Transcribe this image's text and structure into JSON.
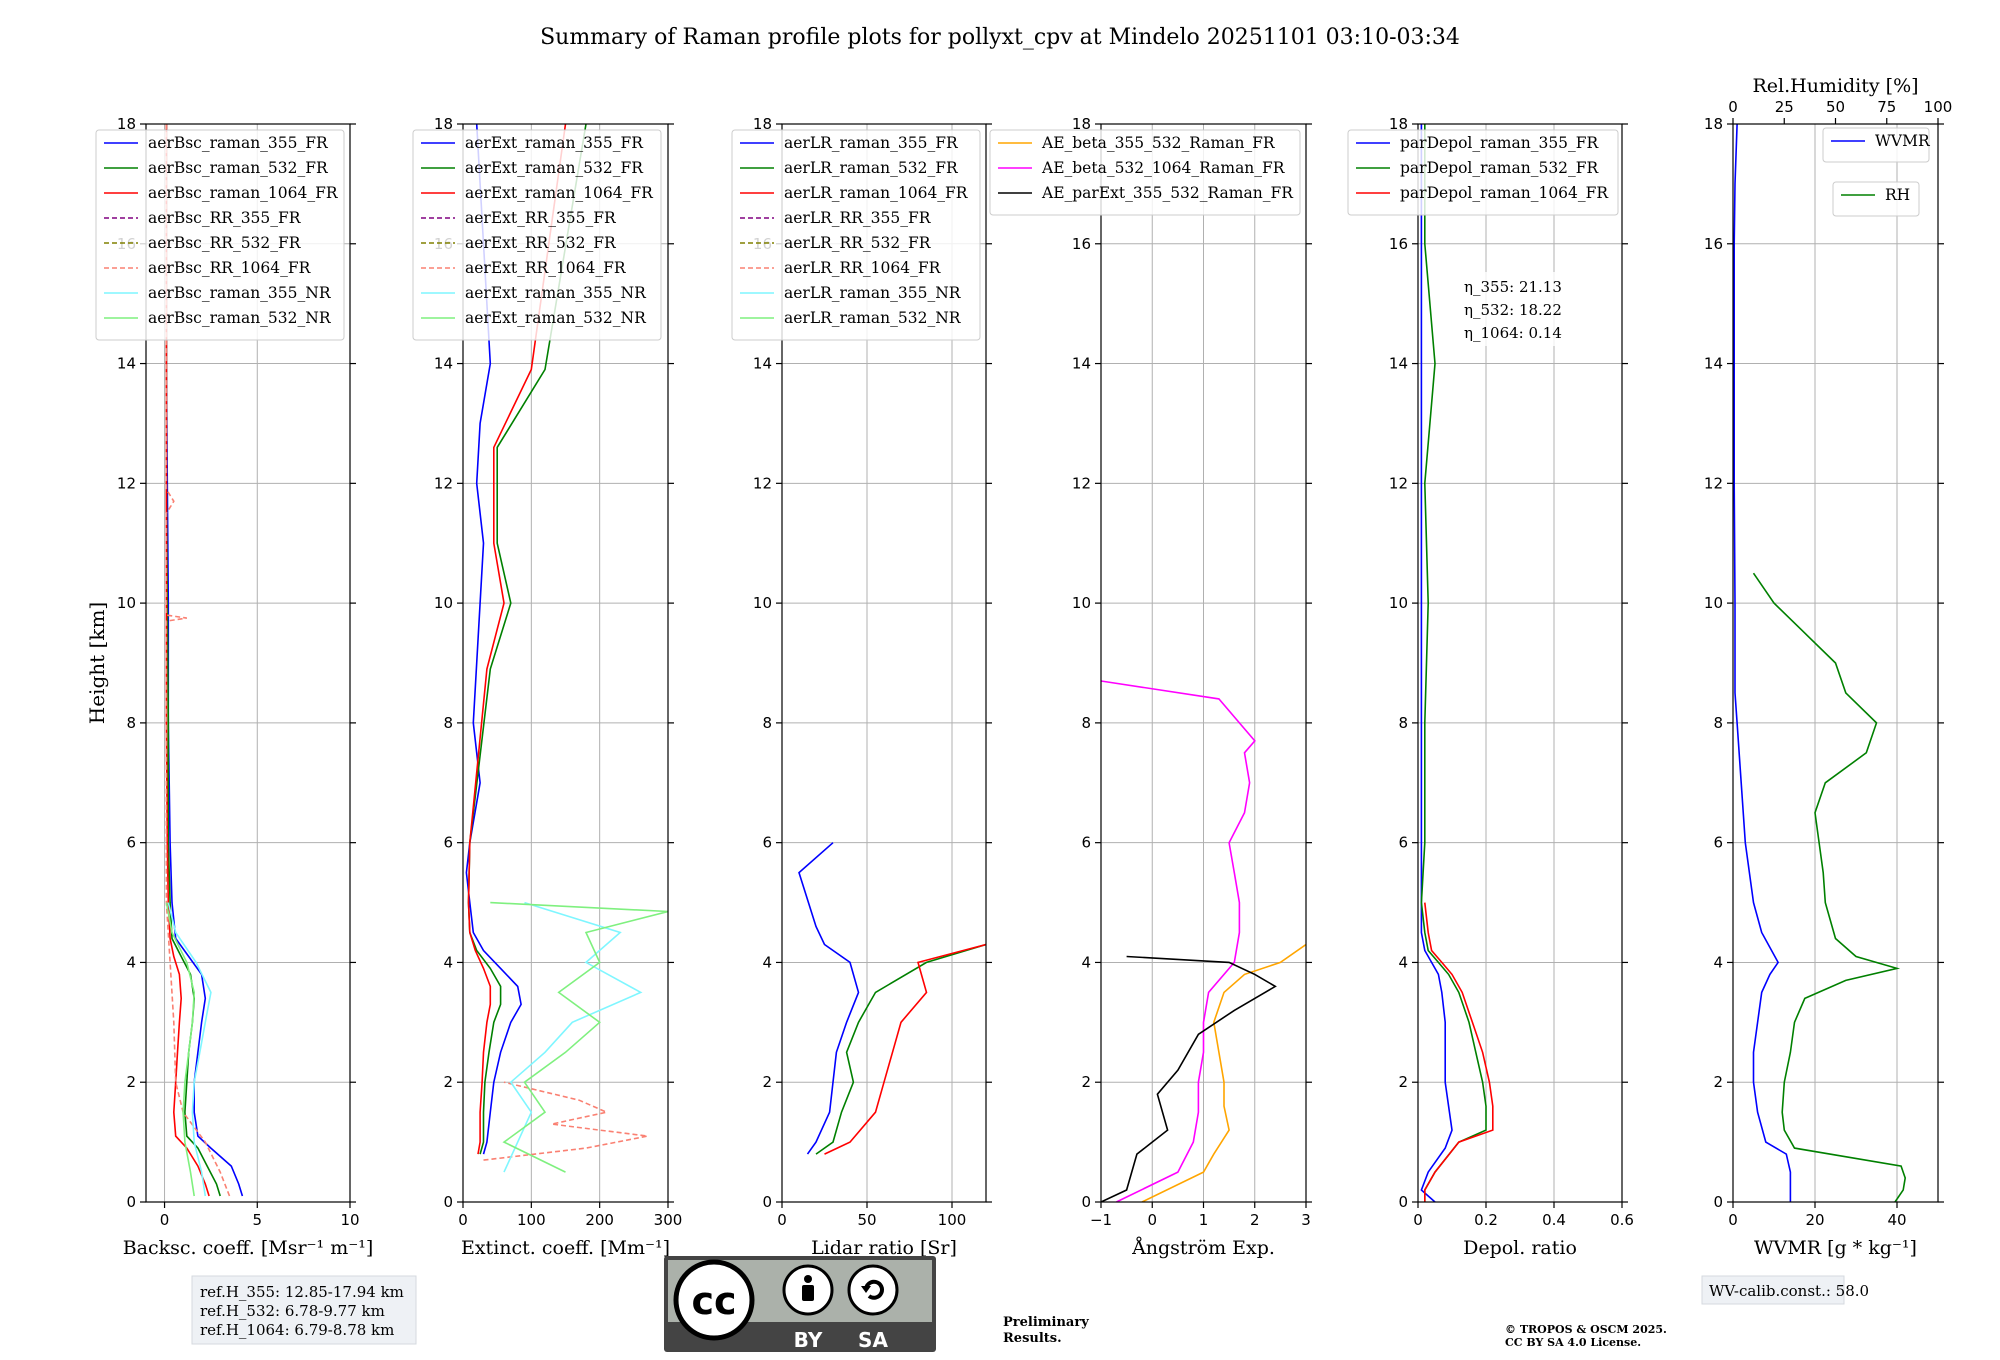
{
  "title": "Summary of Raman profile plots for pollyxt_cpv at Mindelo 20251101 03:10-03:34",
  "colors": {
    "blue": "#0000ff",
    "green": "#008000",
    "red": "#ff0000",
    "purple": "#800080",
    "olive": "#808000",
    "salmon": "#fa8072",
    "cyan": "#7ff6ff",
    "lightgreen": "#7ff07f",
    "orange": "#ffa500",
    "magenta": "#ff00ff",
    "black": "#000000",
    "grid": "#b0b0b0"
  },
  "y_axis": {
    "label": "Height [km]",
    "ylim": [
      0,
      18
    ],
    "ticks": [
      0,
      2,
      4,
      6,
      8,
      10,
      12,
      14,
      16,
      18
    ]
  },
  "chart_data": [
    {
      "id": "bsc",
      "type": "line",
      "xlabel": "Backsc. coeff. [Msr⁻¹ m⁻¹]",
      "xlim": [
        -1,
        10
      ],
      "xticks": [
        0,
        5,
        10
      ],
      "legend": [
        "aerBsc_raman_355_FR",
        "aerBsc_raman_532_FR",
        "aerBsc_raman_1064_FR",
        "aerBsc_RR_355_FR",
        "aerBsc_RR_532_FR",
        "aerBsc_RR_1064_FR",
        "aerBsc_raman_355_NR",
        "aerBsc_raman_532_NR"
      ],
      "series": [
        {
          "name": "aerBsc_raman_355_FR",
          "color": "blue",
          "h": [
            0.1,
            0.3,
            0.6,
            0.9,
            1.1,
            1.5,
            2,
            2.5,
            3,
            3.4,
            3.8,
            4.1,
            4.4,
            5,
            6,
            8,
            10,
            12,
            14,
            16,
            18
          ],
          "v": [
            4.2,
            4,
            3.6,
            2.5,
            1.8,
            1.6,
            1.6,
            1.8,
            2,
            2.2,
            2,
            1.3,
            0.6,
            0.4,
            0.3,
            0.2,
            0.2,
            0.15,
            0.1,
            0.1,
            0.1
          ]
        },
        {
          "name": "aerBsc_raman_532_FR",
          "color": "green",
          "h": [
            0.1,
            0.3,
            0.6,
            0.9,
            1.1,
            1.5,
            2,
            2.5,
            3,
            3.4,
            3.8,
            4.1,
            4.4,
            5,
            6,
            8,
            10,
            12,
            14,
            16,
            18
          ],
          "v": [
            3,
            2.8,
            2.3,
            1.8,
            1.2,
            1.1,
            1.2,
            1.3,
            1.5,
            1.6,
            1.4,
            0.9,
            0.4,
            0.3,
            0.2,
            0.2,
            0.15,
            0.1,
            0.1,
            0.1,
            0.1
          ]
        },
        {
          "name": "aerBsc_raman_1064_FR",
          "color": "red",
          "h": [
            0.1,
            0.3,
            0.6,
            0.9,
            1.1,
            1.5,
            2,
            2.5,
            3,
            3.4,
            3.8,
            4.1,
            4.4,
            5,
            6,
            8,
            10,
            12,
            14,
            16,
            18
          ],
          "v": [
            2.4,
            2.2,
            1.8,
            1.2,
            0.6,
            0.5,
            0.6,
            0.7,
            0.8,
            0.9,
            0.8,
            0.5,
            0.3,
            0.2,
            0.15,
            0.1,
            0.1,
            0.1,
            0.1,
            0.1,
            0.1
          ]
        },
        {
          "name": "aerBsc_RR_1064_FR",
          "color": "salmon",
          "dash": true,
          "h": [
            0.1,
            0.5,
            1,
            1.5,
            2,
            3,
            4,
            5,
            9.7,
            9.75,
            9.8,
            11.5,
            11.7,
            11.9,
            12,
            14,
            16,
            18
          ],
          "v": [
            3.5,
            3,
            2.2,
            1,
            0.6,
            0.5,
            0.3,
            0.1,
            0.1,
            1.2,
            0.1,
            0.1,
            0.5,
            0.1,
            0.1,
            0.1,
            0.1,
            0.1
          ]
        },
        {
          "name": "aerBsc_raman_355_NR",
          "color": "cyan",
          "h": [
            0.1,
            0.5,
            1,
            1.5,
            2,
            2.5,
            3,
            3.5,
            4,
            4.5,
            5
          ],
          "v": [
            2.2,
            2,
            1.6,
            1.5,
            1.6,
            1.9,
            2.2,
            2.5,
            1.7,
            0.6,
            0.2
          ]
        },
        {
          "name": "aerBsc_raman_532_NR",
          "color": "lightgreen",
          "h": [
            0.1,
            0.5,
            1,
            1.5,
            2,
            2.5,
            3,
            3.5,
            4,
            4.5,
            5
          ],
          "v": [
            1.6,
            1.4,
            1.1,
            1,
            1.1,
            1.3,
            1.5,
            1.6,
            1.2,
            0.4,
            0.1
          ]
        }
      ],
      "refbox": [
        "ref.H_355: 12.85-17.94 km",
        "ref.H_532: 6.78-9.77 km",
        "ref.H_1064: 6.79-8.78 km"
      ]
    },
    {
      "id": "ext",
      "type": "line",
      "xlabel": "Extinct. coeff. [Mm⁻¹]",
      "xlim": [
        0,
        300
      ],
      "xticks": [
        0,
        100,
        200,
        300
      ],
      "legend": [
        "aerExt_raman_355_FR",
        "aerExt_raman_532_FR",
        "aerExt_raman_1064_FR",
        "aerExt_RR_355_FR",
        "aerExt_RR_532_FR",
        "aerExt_RR_1064_FR",
        "aerExt_raman_355_NR",
        "aerExt_raman_532_NR"
      ],
      "series": [
        {
          "name": "aerExt_raman_355_FR",
          "color": "blue",
          "h": [
            0.8,
            1,
            1.5,
            2,
            2.5,
            3,
            3.3,
            3.6,
            3.9,
            4.2,
            4.5,
            5,
            5.5,
            6,
            7,
            8,
            9,
            10,
            11,
            12,
            13,
            14,
            16,
            18
          ],
          "v": [
            30,
            35,
            40,
            45,
            55,
            70,
            85,
            80,
            55,
            30,
            15,
            10,
            5,
            10,
            25,
            15,
            20,
            25,
            30,
            20,
            25,
            40,
            30,
            20
          ]
        },
        {
          "name": "aerExt_raman_532_FR",
          "color": "green",
          "h": [
            0.8,
            1,
            1.5,
            2,
            2.5,
            3,
            3.3,
            3.6,
            3.9,
            4.2,
            4.5,
            5,
            6,
            8.9,
            10,
            11,
            12.6,
            13.9,
            18
          ],
          "v": [
            25,
            30,
            30,
            32,
            38,
            45,
            55,
            55,
            40,
            20,
            10,
            8,
            10,
            40,
            70,
            50,
            50,
            120,
            180
          ]
        },
        {
          "name": "aerExt_raman_1064_FR",
          "color": "red",
          "h": [
            0.8,
            1,
            1.5,
            2,
            2.5,
            3,
            3.3,
            3.6,
            3.9,
            4.2,
            4.5,
            5,
            6,
            8.9,
            10,
            11,
            12.6,
            13.9,
            18
          ],
          "v": [
            22,
            25,
            25,
            28,
            30,
            35,
            40,
            40,
            30,
            18,
            10,
            8,
            10,
            35,
            60,
            45,
            45,
            100,
            150
          ]
        },
        {
          "name": "aerExt_RR_1064_FR",
          "color": "salmon",
          "dash": true,
          "h": [
            0.7,
            0.9,
            1.1,
            1.3,
            1.5,
            1.7,
            2
          ],
          "v": [
            30,
            180,
            270,
            130,
            210,
            170,
            60
          ]
        },
        {
          "name": "aerExt_raman_355_NR",
          "color": "cyan",
          "h": [
            0.5,
            1,
            1.5,
            2,
            2.5,
            3,
            3.5,
            4,
            4.5,
            5
          ],
          "v": [
            60,
            80,
            100,
            70,
            120,
            160,
            260,
            180,
            230,
            90
          ]
        },
        {
          "name": "aerExt_raman_532_NR",
          "color": "lightgreen",
          "h": [
            0.5,
            1,
            1.5,
            2,
            2.5,
            3,
            3.5,
            4,
            4.5,
            4.85,
            5
          ],
          "v": [
            150,
            60,
            120,
            90,
            150,
            200,
            140,
            200,
            180,
            300,
            40
          ]
        }
      ]
    },
    {
      "id": "lr",
      "type": "line",
      "xlabel": "Lidar ratio [Sr]",
      "xlim": [
        0,
        120
      ],
      "xticks": [
        0,
        50,
        100
      ],
      "legend": [
        "aerLR_raman_355_FR",
        "aerLR_raman_532_FR",
        "aerLR_raman_1064_FR",
        "aerLR_RR_355_FR",
        "aerLR_RR_532_FR",
        "aerLR_RR_1064_FR",
        "aerLR_raman_355_NR",
        "aerLR_raman_532_NR"
      ],
      "series": [
        {
          "name": "aerLR_raman_355_FR",
          "color": "blue",
          "h": [
            0.8,
            1,
            1.5,
            2,
            2.5,
            3,
            3.5,
            4,
            4.3,
            4.6,
            5.5,
            6
          ],
          "v": [
            15,
            20,
            28,
            30,
            32,
            38,
            45,
            40,
            25,
            20,
            10,
            30
          ]
        },
        {
          "name": "aerLR_raman_532_FR",
          "color": "green",
          "h": [
            0.8,
            1,
            1.5,
            2,
            2.5,
            3,
            3.5,
            4,
            4.3
          ],
          "v": [
            20,
            30,
            35,
            42,
            38,
            45,
            55,
            85,
            120
          ]
        },
        {
          "name": "aerLR_raman_1064_FR",
          "color": "red",
          "h": [
            0.8,
            1,
            1.5,
            2,
            2.5,
            3,
            3.5,
            4,
            4.3
          ],
          "v": [
            25,
            40,
            55,
            60,
            65,
            70,
            85,
            80,
            120
          ]
        }
      ]
    },
    {
      "id": "ae",
      "type": "line",
      "xlabel": "Ångström Exp.",
      "xlim": [
        -1,
        3
      ],
      "xticks": [
        -1,
        0,
        1,
        2,
        3
      ],
      "legend": [
        "AE_beta_355_532_Raman_FR",
        "AE_beta_532_1064_Raman_FR",
        "AE_parExt_355_532_Raman_FR"
      ],
      "series": [
        {
          "name": "AE_beta_355_532_Raman_FR",
          "color": "orange",
          "h": [
            0,
            0.5,
            0.8,
            1.2,
            1.6,
            2,
            2.5,
            3,
            3.5,
            3.8,
            4,
            4.3
          ],
          "v": [
            -0.2,
            1,
            1.2,
            1.5,
            1.4,
            1.4,
            1.3,
            1.2,
            1.4,
            1.8,
            2.5,
            3
          ]
        },
        {
          "name": "AE_beta_532_1064_Raman_FR",
          "color": "magenta",
          "h": [
            0,
            0.5,
            1,
            1.5,
            2,
            2.5,
            3,
            3.5,
            4,
            4.5,
            5,
            5.5,
            6,
            6.5,
            7,
            7.5,
            7.7,
            8,
            8.4,
            8.7
          ],
          "v": [
            -0.7,
            0.5,
            0.8,
            0.9,
            0.9,
            1,
            1,
            1.1,
            1.6,
            1.7,
            1.7,
            1.6,
            1.5,
            1.8,
            1.9,
            1.8,
            2,
            1.7,
            1.3,
            -1
          ]
        },
        {
          "name": "AE_parExt_355_532_Raman_FR",
          "color": "black",
          "h": [
            0,
            0.2,
            0.8,
            1.2,
            1.8,
            2.2,
            2.8,
            3.2,
            3.6,
            3.8,
            4,
            4.1
          ],
          "v": [
            -1,
            -0.5,
            -0.3,
            0.3,
            0.1,
            0.5,
            0.9,
            1.6,
            2.4,
            2,
            1.5,
            -0.5
          ]
        }
      ]
    },
    {
      "id": "depol",
      "type": "line",
      "xlabel": "Depol. ratio",
      "xlim": [
        0,
        0.6
      ],
      "xticks": [
        0,
        0.2,
        0.4,
        0.6
      ],
      "legend": [
        "parDepol_raman_355_FR",
        "parDepol_raman_532_FR",
        "parDepol_raman_1064_FR"
      ],
      "annotations": [
        "η_355: 21.13",
        "η_532: 18.22",
        "η_1064: 0.14"
      ],
      "series": [
        {
          "name": "parDepol_raman_355_FR",
          "color": "blue",
          "h": [
            0,
            0.2,
            0.5,
            0.9,
            1.2,
            1.6,
            2,
            2.5,
            3,
            3.5,
            3.8,
            4,
            4.2,
            4.5,
            5,
            6,
            8,
            10,
            12,
            14,
            16,
            18
          ],
          "v": [
            0.05,
            0.01,
            0.03,
            0.08,
            0.1,
            0.09,
            0.08,
            0.08,
            0.08,
            0.07,
            0.06,
            0.04,
            0.02,
            0.01,
            0.01,
            0.01,
            0.01,
            0.01,
            0.01,
            0.01,
            0.01,
            0.01
          ]
        },
        {
          "name": "parDepol_raman_532_FR",
          "color": "green",
          "h": [
            0,
            0.2,
            0.5,
            1,
            1.2,
            1.6,
            2,
            2.5,
            3,
            3.5,
            3.8,
            4,
            4.2,
            4.5,
            5,
            6,
            8,
            10,
            12,
            14,
            16,
            18
          ],
          "v": [
            0.02,
            0.02,
            0.05,
            0.12,
            0.2,
            0.2,
            0.19,
            0.17,
            0.15,
            0.12,
            0.09,
            0.06,
            0.03,
            0.02,
            0.01,
            0.02,
            0.02,
            0.03,
            0.02,
            0.05,
            0.02,
            0.02
          ]
        },
        {
          "name": "parDepol_raman_1064_FR",
          "color": "red",
          "h": [
            0,
            0.2,
            0.5,
            1,
            1.2,
            1.6,
            2,
            2.5,
            3,
            3.5,
            3.8,
            4,
            4.2,
            4.5,
            5
          ],
          "v": [
            0.02,
            0.02,
            0.05,
            0.12,
            0.22,
            0.22,
            0.21,
            0.19,
            0.16,
            0.13,
            0.1,
            0.07,
            0.04,
            0.03,
            0.02
          ]
        }
      ]
    },
    {
      "id": "wv",
      "type": "line",
      "xlabel": "WVMR [g * kg⁻¹]",
      "xlim": [
        0,
        50
      ],
      "xticks": [
        0,
        20,
        40
      ],
      "x2label": "Rel.Humidity [%]",
      "x2lim": [
        0,
        100
      ],
      "x2ticks": [
        0,
        25,
        50,
        75,
        100
      ],
      "legend": [
        "WVMR",
        "RH"
      ],
      "calib": "WV-calib.const.: 58.0",
      "series": [
        {
          "name": "WVMR",
          "color": "blue",
          "units": "x",
          "h": [
            0,
            0.5,
            0.8,
            1,
            1.5,
            2,
            2.5,
            3,
            3.5,
            3.8,
            4,
            4.5,
            5,
            6,
            7,
            8,
            8.5,
            9,
            10,
            12,
            14,
            16,
            17,
            18
          ],
          "v": [
            14,
            14,
            13,
            8,
            6,
            5,
            5,
            6,
            7,
            9,
            11,
            7,
            5,
            3,
            2,
            1,
            0.5,
            0.5,
            0.5,
            0.3,
            0.3,
            0.3,
            0.5,
            1
          ]
        },
        {
          "name": "RH",
          "color": "green",
          "units": "x2",
          "h": [
            0,
            0.2,
            0.4,
            0.6,
            0.9,
            1.2,
            1.5,
            2,
            2.5,
            3,
            3.4,
            3.7,
            3.9,
            4.1,
            4.4,
            5,
            5.5,
            6,
            6.5,
            7,
            7.5,
            8,
            8.5,
            9,
            9.5,
            10,
            10.5
          ],
          "v": [
            79,
            83,
            84,
            82,
            30,
            25,
            24,
            25,
            28,
            30,
            35,
            55,
            80,
            60,
            50,
            45,
            44,
            42,
            40,
            45,
            65,
            70,
            55,
            50,
            35,
            20,
            10
          ]
        }
      ]
    }
  ],
  "footer": {
    "cc_top": "cc",
    "cc_by": "BY",
    "cc_sa": "SA",
    "preliminary": [
      "Preliminary",
      "Results."
    ],
    "copyright": [
      "© TROPOS & OSCM 2025.",
      "CC BY SA 4.0 License."
    ]
  }
}
